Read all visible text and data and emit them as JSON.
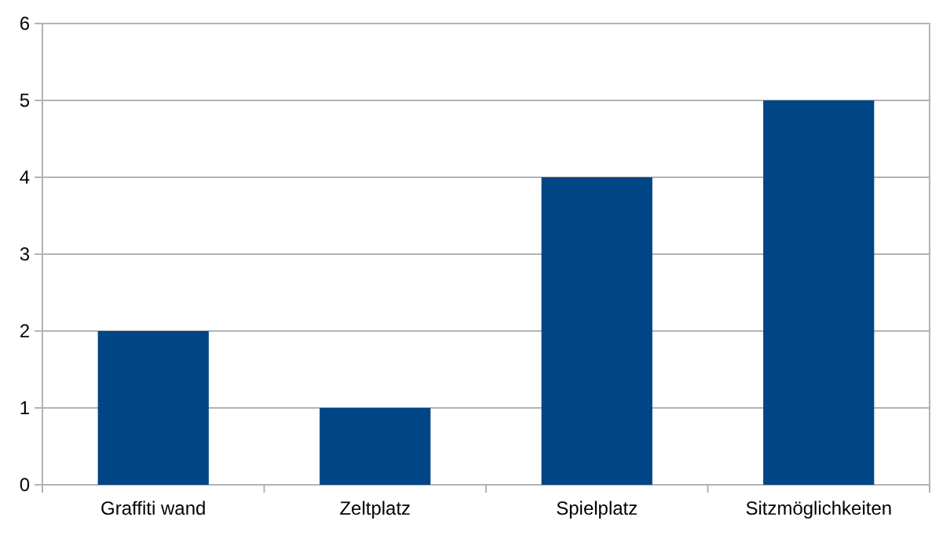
{
  "chart_data": {
    "type": "bar",
    "categories": [
      "Graffiti wand",
      "Zeltplatz",
      "Spielplatz",
      "Sitzmöglichkeiten"
    ],
    "values": [
      2,
      1,
      4,
      5
    ],
    "color": "#004586",
    "ylim": [
      0,
      6
    ],
    "yticks": [
      0,
      1,
      2,
      3,
      4,
      5,
      6
    ],
    "grid": "y"
  }
}
